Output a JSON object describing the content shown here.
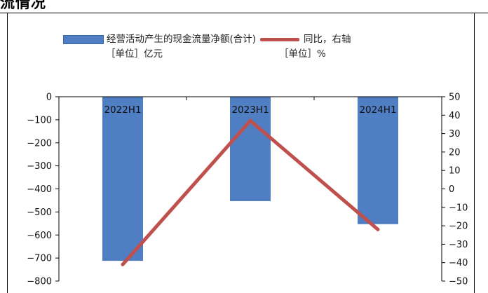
{
  "page": {
    "heading": "流情况"
  },
  "legend": {
    "bar_label": "经营活动产生的现金流量净额(合计)",
    "bar_unit": "［单位］亿元",
    "line_label": "同比，右轴",
    "line_unit": "［单位］%"
  },
  "colors": {
    "bar": "#4f7ec2",
    "line": "#c0504d",
    "frame": "#000000"
  },
  "chart_data": {
    "type": "bar",
    "categories": [
      "2022H1",
      "2023H1",
      "2024H1"
    ],
    "series": [
      {
        "name": "经营活动产生的现金流量净额(合计)",
        "type": "bar",
        "axis": "left",
        "values": [
          -712,
          -453,
          -553
        ]
      },
      {
        "name": "同比，右轴",
        "type": "line",
        "axis": "right",
        "values": [
          -41,
          37,
          -22
        ]
      }
    ],
    "y_left": {
      "ylim": [
        -800,
        0
      ],
      "ticks": [
        0,
        -100,
        -200,
        -300,
        -400,
        -500,
        -600,
        -700,
        -800
      ],
      "tick_labels": [
        "0",
        "−100",
        "−200",
        "−300",
        "−400",
        "−500",
        "−600",
        "−700",
        "−800"
      ]
    },
    "y_right": {
      "ylim": [
        -50,
        50
      ],
      "ticks": [
        50,
        40,
        30,
        20,
        10,
        0,
        -10,
        -20,
        -30,
        -40,
        -50
      ],
      "tick_labels": [
        "50",
        "40",
        "30",
        "20",
        "10",
        "0",
        "−10",
        "−20",
        "−30",
        "−40",
        "−50"
      ]
    },
    "category_label_position": "top",
    "grid": false,
    "legend_placement": "top"
  }
}
